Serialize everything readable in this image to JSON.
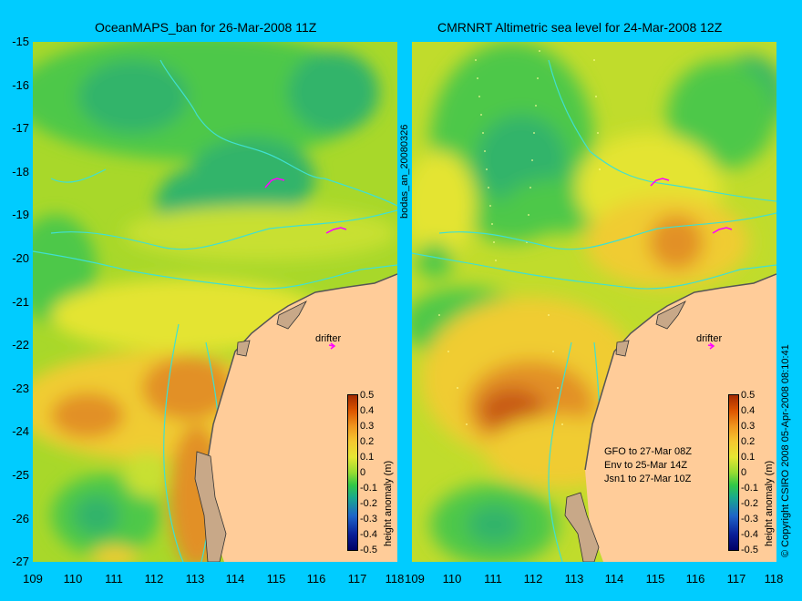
{
  "left_panel": {
    "title": "OceanMAPS_ban for 26-Mar-2008 11Z"
  },
  "right_panel": {
    "title": "CMRNRT Altimetric sea level  for 24-Mar-2008 12Z"
  },
  "y_ticks": [
    "-15",
    "-16",
    "-17",
    "-18",
    "-19",
    "-20",
    "-21",
    "-22",
    "-23",
    "-24",
    "-25",
    "-26",
    "-27"
  ],
  "x_ticks": [
    "109",
    "110",
    "111",
    "112",
    "113",
    "114",
    "115",
    "116",
    "117",
    "118"
  ],
  "colorbar": {
    "ticks": [
      "0.5",
      "0.4",
      "0.3",
      "0.2",
      "0.1",
      "0",
      "-0.1",
      "-0.2",
      "-0.3",
      "-0.4",
      "-0.5"
    ],
    "unit": "height anomaly (m)"
  },
  "labels": {
    "drifter": "drifter",
    "analysis_id": "bodas_an_20080326",
    "copyright": "© Copyright CSIRO 2008  05-Apr-2008 08:10:41"
  },
  "observations": [
    "GFO to 27-Mar 08Z",
    "Env to 25-Mar 14Z",
    "Jsn1 to 27-Mar 10Z"
  ],
  "chart_data": {
    "type": "heatmap",
    "x_range_lon": [
      109,
      118
    ],
    "y_range_lat": [
      -27,
      -15
    ],
    "value_range_m": [
      -0.5,
      0.5
    ]
  },
  "colors": {
    "background": "#00ccff",
    "land": "#ffcc99",
    "coast_shelf": "#c8a888",
    "isobath": "#40e0d0",
    "drifter_track": "#ff00ff"
  }
}
